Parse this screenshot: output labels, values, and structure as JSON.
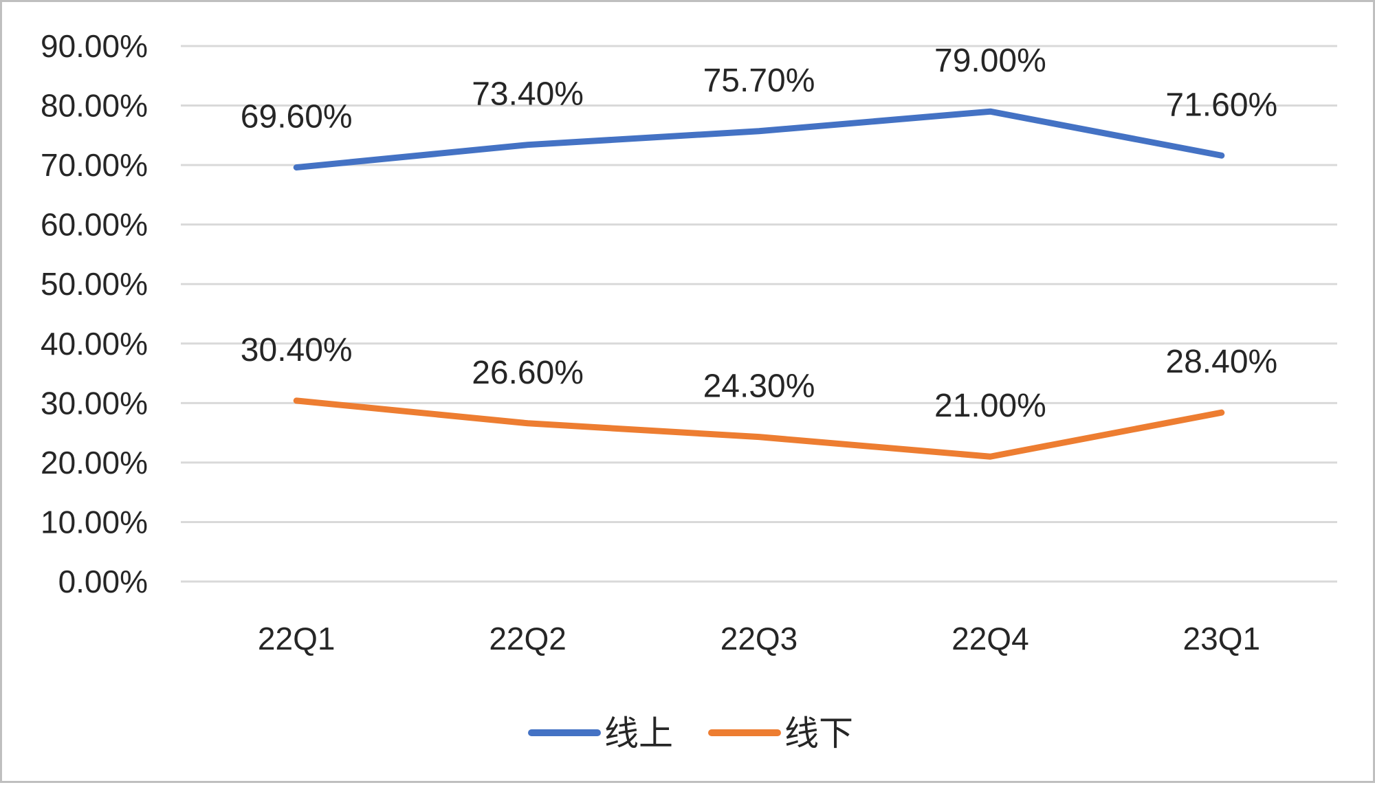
{
  "chart_data": {
    "type": "line",
    "categories": [
      "22Q1",
      "22Q2",
      "22Q3",
      "22Q4",
      "23Q1"
    ],
    "series": [
      {
        "name": "线上",
        "values": [
          69.6,
          73.4,
          75.7,
          79.0,
          71.6
        ],
        "labels": [
          "69.60%",
          "73.40%",
          "75.70%",
          "79.00%",
          "71.60%"
        ],
        "color": "#4472C4"
      },
      {
        "name": "线下",
        "values": [
          30.4,
          26.6,
          24.3,
          21.0,
          28.4
        ],
        "labels": [
          "30.40%",
          "26.60%",
          "24.30%",
          "21.00%",
          "28.40%"
        ],
        "color": "#ED7D31"
      }
    ],
    "ylim": [
      0,
      90
    ],
    "yticks": [
      0,
      10,
      20,
      30,
      40,
      50,
      60,
      70,
      80,
      90
    ],
    "ytick_labels": [
      "0.00%",
      "10.00%",
      "20.00%",
      "30.00%",
      "40.00%",
      "50.00%",
      "60.00%",
      "70.00%",
      "80.00%",
      "90.00%"
    ],
    "title": "",
    "xlabel": "",
    "ylabel": "",
    "grid": true,
    "gridline_color": "#d9d9d9",
    "legend_position": "bottom"
  }
}
